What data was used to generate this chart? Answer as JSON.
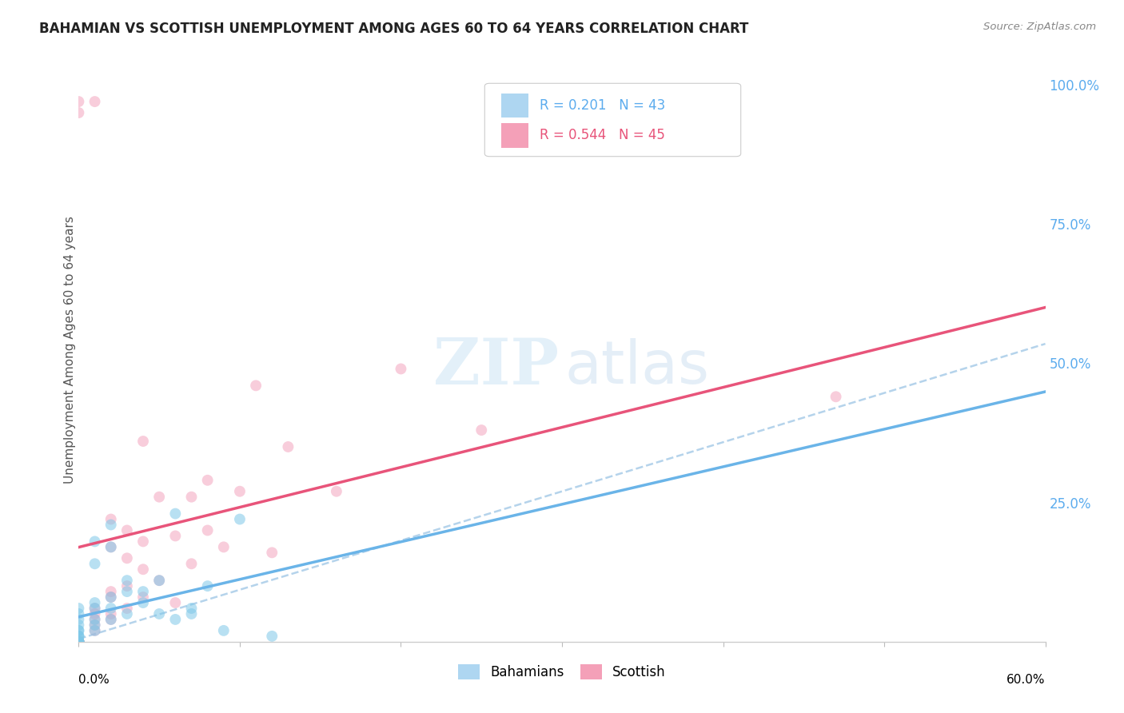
{
  "title": "BAHAMIAN VS SCOTTISH UNEMPLOYMENT AMONG AGES 60 TO 64 YEARS CORRELATION CHART",
  "source": "Source: ZipAtlas.com",
  "ylabel": "Unemployment Among Ages 60 to 64 years",
  "right_yticklabels": [
    "",
    "25.0%",
    "50.0%",
    "75.0%",
    "100.0%"
  ],
  "right_ytick_vals": [
    0.0,
    0.25,
    0.5,
    0.75,
    1.0
  ],
  "legend_blue_text": "R = 0.201   N = 43",
  "legend_pink_text": "R = 0.544   N = 45",
  "legend_blue_label": "Bahamians",
  "legend_pink_label": "Scottish",
  "bahamas_x": [
    0.0,
    0.0,
    0.0,
    0.0,
    0.0,
    0.0,
    0.0,
    0.0,
    0.0,
    0.0,
    0.0,
    0.0,
    0.0,
    0.0,
    0.0,
    0.0,
    0.01,
    0.01,
    0.01,
    0.01,
    0.01,
    0.01,
    0.01,
    0.02,
    0.02,
    0.02,
    0.02,
    0.02,
    0.03,
    0.03,
    0.03,
    0.04,
    0.04,
    0.05,
    0.05,
    0.06,
    0.06,
    0.07,
    0.07,
    0.08,
    0.09,
    0.1,
    0.12
  ],
  "bahamas_y": [
    0.0,
    0.0,
    0.0,
    0.0,
    0.0,
    0.0,
    0.0,
    0.01,
    0.01,
    0.01,
    0.02,
    0.02,
    0.03,
    0.04,
    0.05,
    0.06,
    0.02,
    0.03,
    0.04,
    0.06,
    0.07,
    0.14,
    0.18,
    0.04,
    0.06,
    0.08,
    0.17,
    0.21,
    0.05,
    0.09,
    0.11,
    0.07,
    0.09,
    0.05,
    0.11,
    0.04,
    0.23,
    0.05,
    0.06,
    0.1,
    0.02,
    0.22,
    0.01
  ],
  "scottish_x": [
    0.0,
    0.0,
    0.0,
    0.0,
    0.0,
    0.0,
    0.0,
    0.0,
    0.01,
    0.01,
    0.01,
    0.01,
    0.01,
    0.01,
    0.02,
    0.02,
    0.02,
    0.02,
    0.02,
    0.02,
    0.03,
    0.03,
    0.03,
    0.03,
    0.04,
    0.04,
    0.04,
    0.04,
    0.05,
    0.05,
    0.06,
    0.06,
    0.07,
    0.07,
    0.08,
    0.08,
    0.09,
    0.1,
    0.11,
    0.12,
    0.13,
    0.16,
    0.2,
    0.25,
    0.47
  ],
  "scottish_y": [
    0.0,
    0.0,
    0.0,
    0.0,
    0.0,
    0.0,
    0.95,
    0.97,
    0.02,
    0.03,
    0.04,
    0.05,
    0.06,
    0.97,
    0.04,
    0.05,
    0.08,
    0.09,
    0.17,
    0.22,
    0.06,
    0.1,
    0.15,
    0.2,
    0.08,
    0.13,
    0.18,
    0.36,
    0.11,
    0.26,
    0.07,
    0.19,
    0.14,
    0.26,
    0.2,
    0.29,
    0.17,
    0.27,
    0.46,
    0.16,
    0.35,
    0.27,
    0.49,
    0.38,
    0.44
  ],
  "bahamas_line_color": "#6ab4e8",
  "scottish_line_color": "#e8547a",
  "dashed_line_color": "#a8cce8",
  "scatter_blue_color": "#7ec8e8",
  "scatter_pink_color": "#f090b0",
  "background_color": "#ffffff",
  "grid_color": "#e0e0e0",
  "title_color": "#222222",
  "right_axis_color": "#5cacee",
  "source_color": "#888888",
  "xlim": [
    0.0,
    0.6
  ],
  "ylim": [
    0.0,
    1.05
  ],
  "scatter_size": 100,
  "scatter_alpha_blue": 0.55,
  "scatter_alpha_pink": 0.45
}
